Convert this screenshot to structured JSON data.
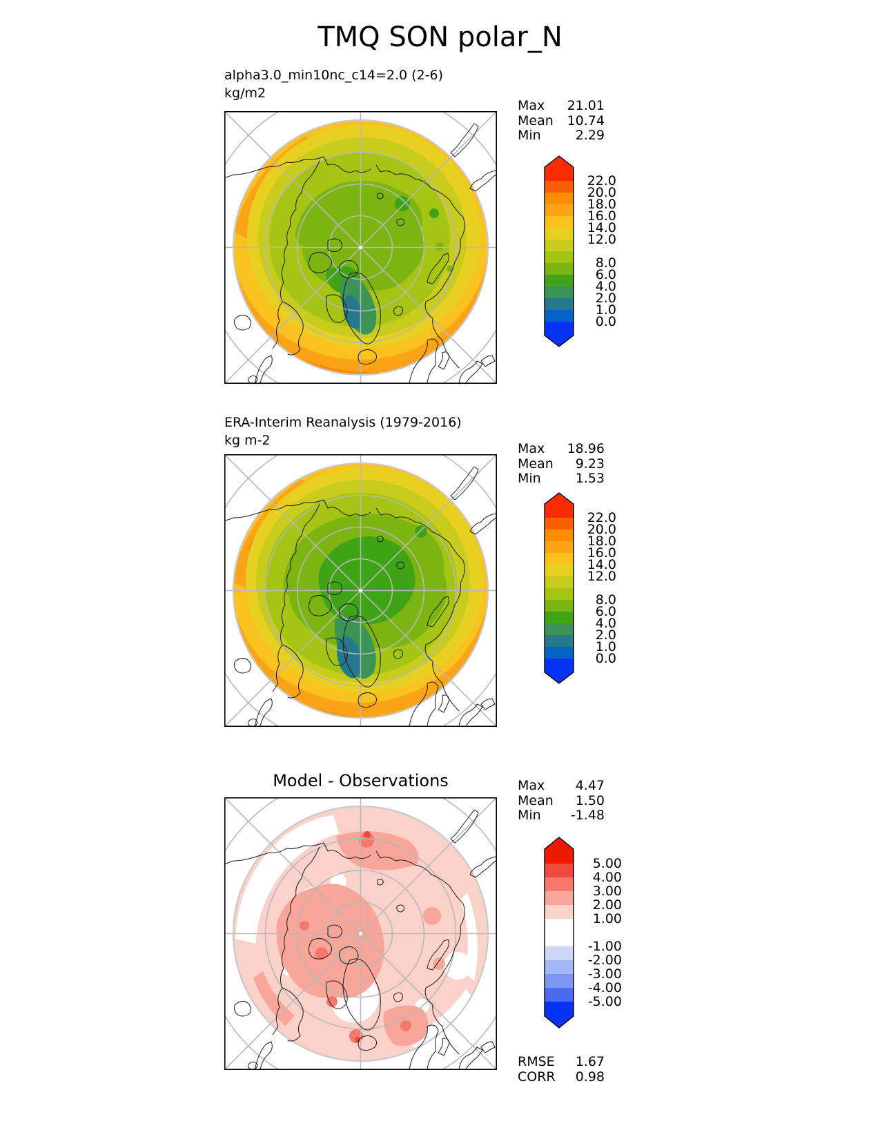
{
  "title": "TMQ SON polar_N",
  "colors": {
    "band0_1": "#0562C6",
    "band1_2": "#26798C",
    "band2_4": "#3B9355",
    "band4_6": "#3FA316",
    "band6_8": "#7CB411",
    "band8_10": "#A6C414",
    "band10_12": "#C8CC1C",
    "band12_14": "#E8D020",
    "band14_16": "#FAC21E",
    "band16_18": "#FBA417",
    "band18_20": "#FC8C00",
    "band20_22": "#FC5F00",
    "tmq_over": "#FB2B00",
    "tmq_under": "#0433F5",
    "diff_p1": "#FBD2C9",
    "diff_p2": "#F8A59A",
    "diff_p3": "#F5786B",
    "diff_p4": "#F14A3C",
    "diff_over": "#EE1A00",
    "diff_m1": "#CBD6F9",
    "diff_m2": "#A3B9F6",
    "diff_m3": "#7B97F2",
    "diff_m4": "#4A6BEF",
    "diff_under": "#0433F5",
    "graticule": "#B8B8B8",
    "boundary_ring": "#C9C9C9",
    "coastline": "#1A1A1A",
    "white": "#FFFFFF"
  },
  "panels": [
    {
      "subtitle": "alpha3.0_min10nc_c14=2.0 (2-6)",
      "units": "kg/m2",
      "stats": [
        {
          "label": "Max",
          "value": "21.01"
        },
        {
          "label": "Mean",
          "value": "10.74"
        },
        {
          "label": "Min",
          "value": "2.29"
        }
      ],
      "colorbar": {
        "over": "#FB2B00",
        "under": "#0433F5",
        "segments": [
          {
            "color": "#FC5F00",
            "h": 1
          },
          {
            "color": "#FC8C00",
            "h": 1
          },
          {
            "color": "#FBA417",
            "h": 1
          },
          {
            "color": "#FAC21E",
            "h": 1
          },
          {
            "color": "#E8D020",
            "h": 1
          },
          {
            "color": "#C8CC1C",
            "h": 1
          },
          {
            "color": "#A6C414",
            "h": 1
          },
          {
            "color": "#7CB411",
            "h": 1
          },
          {
            "color": "#3FA316",
            "h": 1
          },
          {
            "color": "#3B9355",
            "h": 1
          },
          {
            "color": "#26798C",
            "h": 1
          },
          {
            "color": "#0562C6",
            "h": 1
          }
        ],
        "labels": [
          "22.0",
          "20.0",
          "18.0",
          "16.0",
          "14.0",
          "12.0",
          "",
          "8.0",
          "6.0",
          "4.0",
          "2.0",
          "1.0",
          "0.0"
        ]
      }
    },
    {
      "subtitle": "ERA-Interim Reanalysis (1979-2016)",
      "units": "kg m-2",
      "stats": [
        {
          "label": "Max",
          "value": "18.96"
        },
        {
          "label": "Mean",
          "value": "9.23"
        },
        {
          "label": "Min",
          "value": "1.53"
        }
      ],
      "colorbar": {
        "over": "#FB2B00",
        "under": "#0433F5",
        "segments": [
          {
            "color": "#FC5F00",
            "h": 1
          },
          {
            "color": "#FC8C00",
            "h": 1
          },
          {
            "color": "#FBA417",
            "h": 1
          },
          {
            "color": "#FAC21E",
            "h": 1
          },
          {
            "color": "#E8D020",
            "h": 1
          },
          {
            "color": "#C8CC1C",
            "h": 1
          },
          {
            "color": "#A6C414",
            "h": 1
          },
          {
            "color": "#7CB411",
            "h": 1
          },
          {
            "color": "#3FA316",
            "h": 1
          },
          {
            "color": "#3B9355",
            "h": 1
          },
          {
            "color": "#26798C",
            "h": 1
          },
          {
            "color": "#0562C6",
            "h": 1
          }
        ],
        "labels": [
          "22.0",
          "20.0",
          "18.0",
          "16.0",
          "14.0",
          "12.0",
          "",
          "8.0",
          "6.0",
          "4.0",
          "2.0",
          "1.0",
          "0.0"
        ]
      }
    },
    {
      "map_title": "Model - Observations",
      "stats": [
        {
          "label": "Max",
          "value": "4.47"
        },
        {
          "label": "Mean",
          "value": "1.50"
        },
        {
          "label": "Min",
          "value": "-1.48"
        }
      ],
      "colorbar": {
        "over": "#EE1A00",
        "under": "#0433F5",
        "segments": [
          {
            "color": "#F14A3C",
            "h": 1
          },
          {
            "color": "#F5786B",
            "h": 1
          },
          {
            "color": "#F8A59A",
            "h": 1
          },
          {
            "color": "#FBD2C9",
            "h": 1
          },
          {
            "color": "#FFFFFF",
            "h": 2
          },
          {
            "color": "#CBD6F9",
            "h": 1
          },
          {
            "color": "#A3B9F6",
            "h": 1
          },
          {
            "color": "#7B97F2",
            "h": 1
          },
          {
            "color": "#4A6BEF",
            "h": 1
          }
        ],
        "labels": [
          "5.00",
          "4.00",
          "3.00",
          "2.00",
          "1.00",
          "-1.00",
          "-2.00",
          "-3.00",
          "-4.00",
          "-5.00"
        ]
      },
      "metrics": [
        {
          "label": "RMSE",
          "value": "1.67"
        },
        {
          "label": "CORR",
          "value": "0.98"
        }
      ]
    }
  ],
  "chart_data": [
    {
      "type": "heatmap",
      "subtype": "filled_contour_polar_stereographic_map",
      "variable": "TMQ",
      "season": "SON",
      "region": "polar_N",
      "title": "alpha3.0_min10nc_c14=2.0 (2-6)",
      "units": "kg/m2",
      "stats": {
        "max": 21.01,
        "mean": 10.74,
        "min": 2.29
      },
      "contour_levels": [
        0.0,
        1.0,
        2.0,
        4.0,
        6.0,
        8.0,
        10.0,
        12.0,
        14.0,
        16.0,
        18.0,
        20.0,
        22.0
      ],
      "colorbar_tick_labels": [
        "22.0",
        "20.0",
        "18.0",
        "16.0",
        "14.0",
        "12.0",
        "8.0",
        "6.0",
        "4.0",
        "2.0",
        "1.0",
        "0.0"
      ],
      "legend_position": "right",
      "pattern_notes": "values lowest (1-4 kg/m2) over Greenland, 6-8 around pole, increasing outward to 16-22 at southern edge, maxima at lower-left and bottom of map"
    },
    {
      "type": "heatmap",
      "subtype": "filled_contour_polar_stereographic_map",
      "variable": "TMQ",
      "season": "SON",
      "region": "polar_N",
      "title": "ERA-Interim Reanalysis (1979-2016)",
      "units": "kg m-2",
      "stats": {
        "max": 18.96,
        "mean": 9.23,
        "min": 1.53
      },
      "contour_levels": [
        0.0,
        1.0,
        2.0,
        4.0,
        6.0,
        8.0,
        10.0,
        12.0,
        14.0,
        16.0,
        18.0,
        20.0,
        22.0
      ],
      "colorbar_tick_labels": [
        "22.0",
        "20.0",
        "18.0",
        "16.0",
        "14.0",
        "12.0",
        "8.0",
        "6.0",
        "4.0",
        "2.0",
        "1.0",
        "0.0"
      ],
      "legend_position": "right",
      "pattern_notes": "drier (greener) central Arctic than model, 1-4 kg/m2 over Greenland/Baffin, orange 16-20 along southern edge and northeast Atlantic"
    },
    {
      "type": "heatmap",
      "subtype": "difference_map",
      "title": "Model - Observations",
      "units": "kg/m2",
      "stats": {
        "max": 4.47,
        "mean": 1.5,
        "min": -1.48
      },
      "contour_levels": [
        -5.0,
        -4.0,
        -3.0,
        -2.0,
        -1.0,
        1.0,
        2.0,
        3.0,
        4.0,
        5.0
      ],
      "colorbar_tick_labels": [
        "5.00",
        "4.00",
        "3.00",
        "2.00",
        "1.00",
        "-1.00",
        "-2.00",
        "-3.00",
        "-4.00",
        "-5.00"
      ],
      "legend_position": "right",
      "rmse": 1.67,
      "corr": 0.98,
      "pattern_notes": "mostly positive bias +1 to +3 over Canadian Arctic and central Arctic, +3 to +4 spots near Iceland and north-central edge, near zero (white) patches at map margins and southeast of Greenland"
    }
  ]
}
